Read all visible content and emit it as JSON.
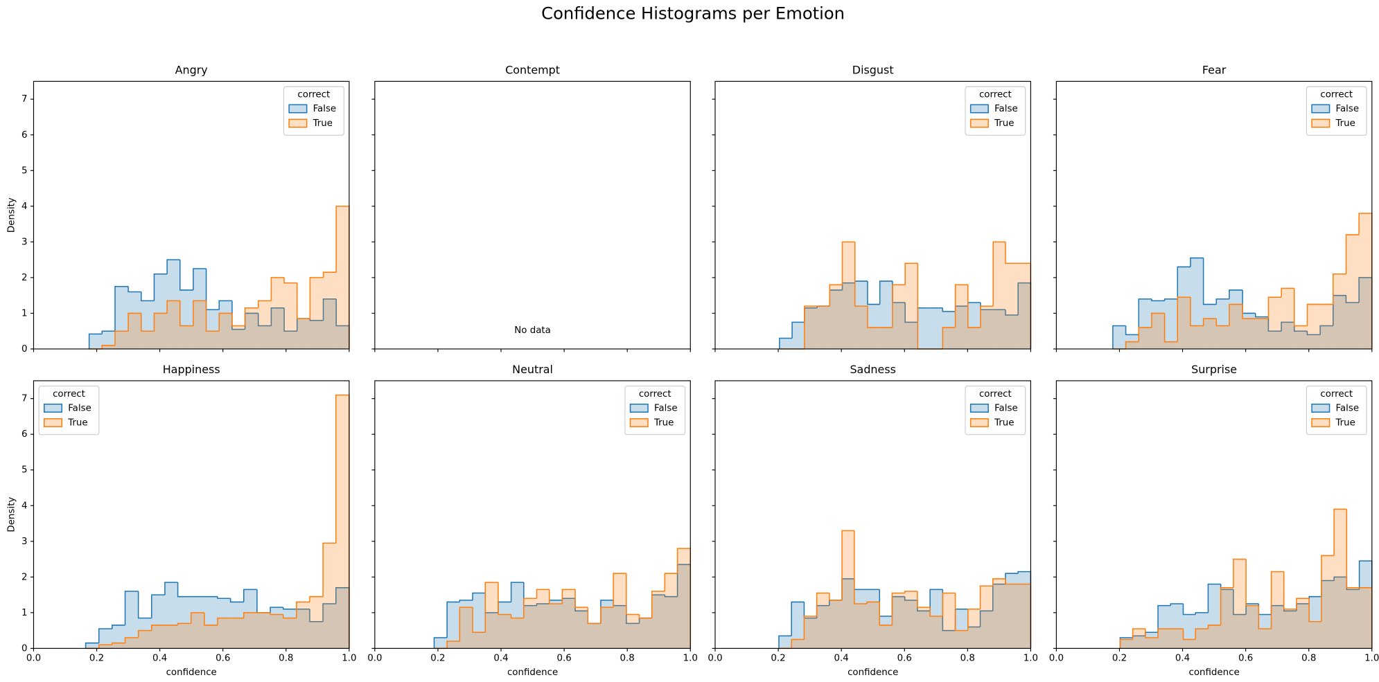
{
  "title": "Confidence Histograms per Emotion",
  "chart_data": [
    {
      "type": "histogram",
      "title": "Angry",
      "ylabel": "Density",
      "xlim": [
        0,
        1
      ],
      "ylim": [
        0,
        7.5
      ],
      "xticks": [
        0,
        0.2,
        0.4,
        0.6,
        0.8,
        1
      ],
      "xtick_labels": false,
      "yticks": [
        0,
        1,
        2,
        3,
        4,
        5,
        6,
        7
      ],
      "ytick_labels": true,
      "legend": "upper right",
      "legend_title": "correct",
      "bins": [
        0.176,
        0.217,
        0.258,
        0.3,
        0.341,
        0.382,
        0.423,
        0.464,
        0.506,
        0.547,
        0.588,
        0.629,
        0.67,
        0.712,
        0.753,
        0.794,
        0.835,
        0.876,
        0.918,
        0.959,
        1.0
      ],
      "series": [
        {
          "name": "False",
          "color": "#1f77b4",
          "values": [
            0.42,
            0.5,
            1.75,
            1.6,
            1.35,
            2.1,
            2.5,
            1.65,
            2.25,
            1.1,
            1.35,
            0.55,
            1.0,
            0.65,
            1.15,
            0.5,
            0.85,
            0.8,
            1.4,
            0.65
          ]
        },
        {
          "name": "True",
          "color": "#ff7f0e",
          "values": [
            0,
            0.1,
            0.5,
            1.0,
            0.5,
            1.0,
            1.35,
            0.65,
            1.35,
            0.5,
            1.0,
            0.65,
            1.15,
            1.35,
            2.0,
            1.85,
            0.85,
            2.0,
            2.15,
            4.0
          ]
        }
      ]
    },
    {
      "type": "histogram",
      "title": "Contempt",
      "xlim": [
        0,
        1
      ],
      "ylim": [
        0,
        7.5
      ],
      "xticks": [
        0,
        0.2,
        0.4,
        0.6,
        0.8,
        1
      ],
      "xtick_labels": false,
      "yticks": [
        0,
        1,
        2,
        3,
        4,
        5,
        6,
        7
      ],
      "ytick_labels": false,
      "annotation": "No data"
    },
    {
      "type": "histogram",
      "title": "Disgust",
      "xlim": [
        0,
        1
      ],
      "ylim": [
        0,
        7.5
      ],
      "xticks": [
        0,
        0.2,
        0.4,
        0.6,
        0.8,
        1
      ],
      "xtick_labels": false,
      "yticks": [
        0,
        1,
        2,
        3,
        4,
        5,
        6,
        7
      ],
      "ytick_labels": false,
      "legend": "upper right",
      "legend_title": "correct",
      "bins": [
        0.204,
        0.244,
        0.283,
        0.323,
        0.363,
        0.403,
        0.443,
        0.483,
        0.522,
        0.562,
        0.602,
        0.642,
        0.682,
        0.721,
        0.761,
        0.801,
        0.841,
        0.881,
        0.92,
        0.96,
        1.0
      ],
      "series": [
        {
          "name": "False",
          "color": "#1f77b4",
          "values": [
            0.3,
            0.75,
            1.15,
            1.2,
            1.65,
            1.85,
            1.9,
            1.25,
            1.9,
            1.3,
            0.75,
            1.15,
            1.15,
            1.05,
            1.2,
            1.3,
            1.1,
            1.1,
            0.95,
            1.85
          ]
        },
        {
          "name": "True",
          "color": "#ff7f0e",
          "values": [
            0,
            0,
            1.2,
            1.2,
            1.8,
            3.0,
            1.2,
            0.6,
            0.6,
            1.8,
            2.4,
            0,
            0,
            0.6,
            1.8,
            0.6,
            1.2,
            3.0,
            2.4,
            2.4
          ]
        }
      ]
    },
    {
      "type": "histogram",
      "title": "Fear",
      "xlim": [
        0,
        1
      ],
      "ylim": [
        0,
        7.5
      ],
      "xticks": [
        0,
        0.2,
        0.4,
        0.6,
        0.8,
        1
      ],
      "xtick_labels": false,
      "yticks": [
        0,
        1,
        2,
        3,
        4,
        5,
        6,
        7
      ],
      "ytick_labels": false,
      "legend": "upper right",
      "legend_title": "correct",
      "bins": [
        0.179,
        0.22,
        0.261,
        0.302,
        0.343,
        0.384,
        0.425,
        0.466,
        0.507,
        0.548,
        0.59,
        0.631,
        0.672,
        0.713,
        0.754,
        0.795,
        0.836,
        0.877,
        0.918,
        0.959,
        1.0
      ],
      "series": [
        {
          "name": "False",
          "color": "#1f77b4",
          "values": [
            0.65,
            0.4,
            1.4,
            1.35,
            1.4,
            2.3,
            2.55,
            1.25,
            1.4,
            1.65,
            1.0,
            0.9,
            0.5,
            0.75,
            0.5,
            0.4,
            0.65,
            1.5,
            1.3,
            2.0
          ]
        },
        {
          "name": "True",
          "color": "#ff7f0e",
          "values": [
            0,
            0.2,
            0.6,
            1.0,
            0.2,
            1.45,
            0.65,
            0.85,
            0.65,
            1.25,
            0.85,
            0.85,
            1.45,
            1.7,
            0.65,
            1.25,
            1.25,
            2.1,
            3.2,
            3.8
          ]
        }
      ]
    },
    {
      "type": "histogram",
      "title": "Happiness",
      "xlabel": "confidence",
      "ylabel": "Density",
      "xlim": [
        0,
        1
      ],
      "ylim": [
        0,
        7.5
      ],
      "xticks": [
        {
          "value": 0,
          "label": "0.0"
        },
        {
          "value": 0.2,
          "label": "0.2"
        },
        {
          "value": 0.4,
          "label": "0.4"
        },
        {
          "value": 0.6,
          "label": "0.6"
        },
        {
          "value": 0.8,
          "label": "0.8"
        },
        {
          "value": 1,
          "label": "1.0"
        }
      ],
      "xtick_labels": true,
      "yticks": [
        0,
        1,
        2,
        3,
        4,
        5,
        6,
        7
      ],
      "ytick_labels": true,
      "legend": "upper left",
      "legend_title": "correct",
      "bins": [
        0.165,
        0.207,
        0.249,
        0.29,
        0.332,
        0.374,
        0.416,
        0.457,
        0.499,
        0.541,
        0.583,
        0.624,
        0.666,
        0.708,
        0.75,
        0.791,
        0.833,
        0.875,
        0.917,
        0.958,
        1.0
      ],
      "series": [
        {
          "name": "False",
          "color": "#1f77b4",
          "values": [
            0.15,
            0.55,
            0.65,
            1.6,
            0.85,
            1.5,
            1.85,
            1.45,
            1.45,
            1.45,
            1.4,
            1.3,
            1.65,
            1.0,
            1.15,
            1.1,
            1.1,
            0.75,
            1.25,
            1.7
          ]
        },
        {
          "name": "True",
          "color": "#ff7f0e",
          "values": [
            0,
            0.1,
            0.15,
            0.3,
            0.5,
            0.65,
            0.65,
            0.7,
            1.0,
            0.65,
            0.85,
            0.85,
            1.0,
            1.0,
            0.95,
            0.85,
            1.3,
            1.45,
            2.95,
            7.1
          ]
        }
      ]
    },
    {
      "type": "histogram",
      "title": "Neutral",
      "xlabel": "confidence",
      "xlim": [
        0,
        1
      ],
      "ylim": [
        0,
        7.5
      ],
      "xticks": [
        {
          "value": 0,
          "label": "0.0"
        },
        {
          "value": 0.2,
          "label": "0.2"
        },
        {
          "value": 0.4,
          "label": "0.4"
        },
        {
          "value": 0.6,
          "label": "0.6"
        },
        {
          "value": 0.8,
          "label": "0.8"
        },
        {
          "value": 1,
          "label": "1.0"
        }
      ],
      "xtick_labels": true,
      "yticks": [
        0,
        1,
        2,
        3,
        4,
        5,
        6,
        7
      ],
      "ytick_labels": false,
      "legend": "upper right",
      "legend_title": "correct",
      "bins": [
        0.188,
        0.229,
        0.269,
        0.31,
        0.35,
        0.391,
        0.432,
        0.472,
        0.513,
        0.553,
        0.594,
        0.635,
        0.675,
        0.716,
        0.756,
        0.797,
        0.838,
        0.878,
        0.919,
        0.959,
        1.0
      ],
      "series": [
        {
          "name": "False",
          "color": "#1f77b4",
          "values": [
            0.3,
            1.3,
            1.35,
            1.55,
            1.0,
            1.3,
            1.85,
            1.2,
            1.25,
            1.35,
            1.4,
            1.05,
            0.7,
            1.35,
            1.2,
            0.7,
            0.85,
            1.5,
            1.45,
            2.35
          ]
        },
        {
          "name": "True",
          "color": "#ff7f0e",
          "values": [
            0,
            0.2,
            1.15,
            0.45,
            1.85,
            0.95,
            0.85,
            1.4,
            1.65,
            1.25,
            1.65,
            1.15,
            0.7,
            1.15,
            2.1,
            0.95,
            0.85,
            1.6,
            2.1,
            2.8
          ]
        }
      ]
    },
    {
      "type": "histogram",
      "title": "Sadness",
      "xlabel": "confidence",
      "xlim": [
        0,
        1
      ],
      "ylim": [
        0,
        7.5
      ],
      "xticks": [
        {
          "value": 0,
          "label": "0.0"
        },
        {
          "value": 0.2,
          "label": "0.2"
        },
        {
          "value": 0.4,
          "label": "0.4"
        },
        {
          "value": 0.6,
          "label": "0.6"
        },
        {
          "value": 0.8,
          "label": "0.8"
        },
        {
          "value": 1,
          "label": "1.0"
        }
      ],
      "xtick_labels": true,
      "yticks": [
        0,
        1,
        2,
        3,
        4,
        5,
        6,
        7
      ],
      "ytick_labels": false,
      "legend": "upper right",
      "legend_title": "correct",
      "bins": [
        0.202,
        0.242,
        0.282,
        0.322,
        0.362,
        0.402,
        0.441,
        0.481,
        0.521,
        0.561,
        0.601,
        0.641,
        0.681,
        0.721,
        0.761,
        0.801,
        0.84,
        0.88,
        0.92,
        0.96,
        1.0
      ],
      "series": [
        {
          "name": "False",
          "color": "#1f77b4",
          "values": [
            0.35,
            1.3,
            0.85,
            1.2,
            1.35,
            1.95,
            1.65,
            1.65,
            0.9,
            1.45,
            1.35,
            1.05,
            1.65,
            0.5,
            1.1,
            0.6,
            1.05,
            1.8,
            2.1,
            2.15
          ]
        },
        {
          "name": "True",
          "color": "#ff7f0e",
          "values": [
            0,
            0.25,
            0.9,
            1.55,
            1.35,
            3.3,
            1.25,
            1.3,
            0.65,
            1.55,
            1.6,
            1.15,
            0.9,
            1.55,
            0.5,
            1.1,
            1.75,
            1.95,
            1.8,
            1.8
          ]
        }
      ]
    },
    {
      "type": "histogram",
      "title": "Surprise",
      "xlabel": "confidence",
      "xlim": [
        0,
        1
      ],
      "ylim": [
        0,
        7.5
      ],
      "xticks": [
        {
          "value": 0,
          "label": "0.0"
        },
        {
          "value": 0.2,
          "label": "0.2"
        },
        {
          "value": 0.4,
          "label": "0.4"
        },
        {
          "value": 0.6,
          "label": "0.6"
        },
        {
          "value": 0.8,
          "label": "0.8"
        },
        {
          "value": 1,
          "label": "1.0"
        }
      ],
      "xtick_labels": true,
      "yticks": [
        0,
        1,
        2,
        3,
        4,
        5,
        6,
        7
      ],
      "ytick_labels": false,
      "legend": "upper right",
      "legend_title": "correct",
      "bins": [
        0.202,
        0.242,
        0.282,
        0.322,
        0.362,
        0.402,
        0.441,
        0.481,
        0.521,
        0.561,
        0.601,
        0.641,
        0.681,
        0.721,
        0.761,
        0.801,
        0.84,
        0.88,
        0.92,
        0.96,
        1.0
      ],
      "series": [
        {
          "name": "False",
          "color": "#1f77b4",
          "values": [
            0.3,
            0.35,
            0.45,
            1.2,
            1.25,
            0.95,
            1.0,
            1.8,
            1.65,
            0.95,
            1.25,
            0.95,
            1.2,
            1.05,
            1.25,
            1.45,
            1.9,
            2.0,
            1.65,
            2.45
          ]
        },
        {
          "name": "True",
          "color": "#ff7f0e",
          "values": [
            0.25,
            0.55,
            0.3,
            0.55,
            0.55,
            0.25,
            0.55,
            0.65,
            1.7,
            2.5,
            1.2,
            0.55,
            2.15,
            1.1,
            1.4,
            0.75,
            2.6,
            3.9,
            1.7,
            1.7
          ]
        }
      ]
    }
  ]
}
